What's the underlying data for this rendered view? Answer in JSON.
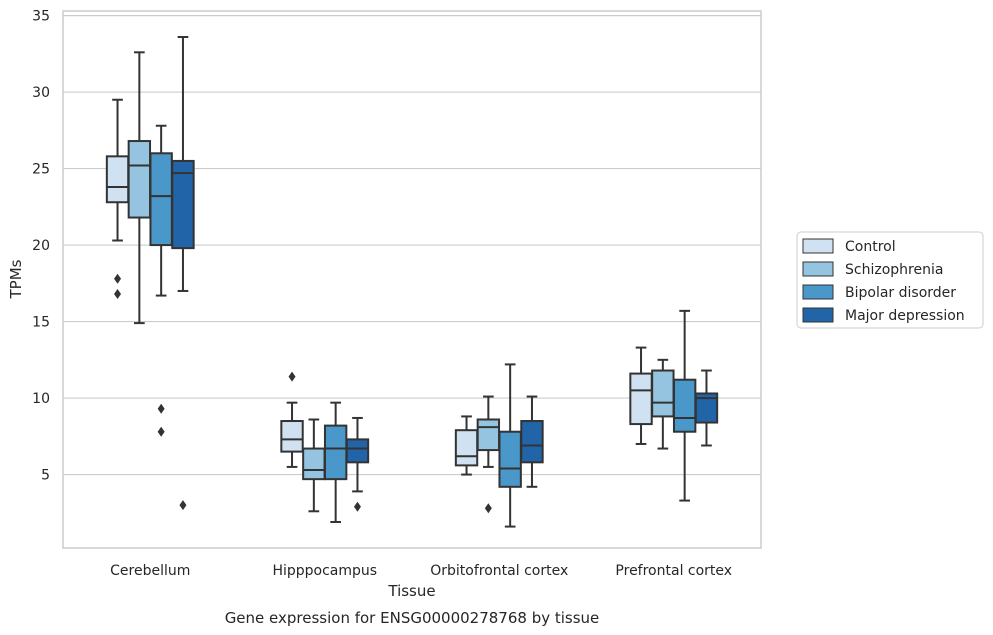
{
  "chart_data": {
    "type": "box",
    "xlabel": "Tissue",
    "ylabel": "TPMs",
    "caption": "Gene expression for ENSG00000278768 by tissue",
    "ylim": [
      0.2,
      35.3
    ],
    "yticks": [
      5,
      10,
      15,
      20,
      25,
      30,
      35
    ],
    "grid": true,
    "legend_position": "right",
    "categories": [
      "Cerebellum",
      "Hipppocampus",
      "Orbitofrontal cortex",
      "Prefrontal cortex"
    ],
    "series": [
      {
        "name": "Control",
        "color": "#d0e1f2",
        "boxes": [
          {
            "min": 20.3,
            "q1": 22.8,
            "median": 23.8,
            "q3": 25.8,
            "max": 29.5,
            "outliers": [
              16.8,
              17.8
            ]
          },
          {
            "min": 5.5,
            "q1": 6.5,
            "median": 7.3,
            "q3": 8.5,
            "max": 9.7,
            "outliers": [
              11.4
            ]
          },
          {
            "min": 5.0,
            "q1": 5.6,
            "median": 6.2,
            "q3": 7.9,
            "max": 8.8,
            "outliers": []
          },
          {
            "min": 7.0,
            "q1": 8.3,
            "median": 10.5,
            "q3": 11.6,
            "max": 13.3,
            "outliers": []
          }
        ]
      },
      {
        "name": "Schizophrenia",
        "color": "#94c4df",
        "boxes": [
          {
            "min": 14.9,
            "q1": 21.8,
            "median": 25.2,
            "q3": 26.8,
            "max": 32.6,
            "outliers": []
          },
          {
            "min": 2.6,
            "q1": 4.7,
            "median": 5.3,
            "q3": 6.7,
            "max": 8.6,
            "outliers": []
          },
          {
            "min": 5.5,
            "q1": 6.6,
            "median": 8.1,
            "q3": 8.6,
            "max": 10.1,
            "outliers": [
              2.8
            ]
          },
          {
            "min": 6.7,
            "q1": 8.8,
            "median": 9.7,
            "q3": 11.8,
            "max": 12.5,
            "outliers": []
          }
        ]
      },
      {
        "name": "Bipolar disorder",
        "color": "#4a98c9",
        "boxes": [
          {
            "min": 16.7,
            "q1": 20.0,
            "median": 23.2,
            "q3": 26.0,
            "max": 27.8,
            "outliers": [
              9.3,
              7.8
            ]
          },
          {
            "min": 1.9,
            "q1": 4.7,
            "median": 6.7,
            "q3": 8.2,
            "max": 9.7,
            "outliers": []
          },
          {
            "min": 1.6,
            "q1": 4.2,
            "median": 5.4,
            "q3": 7.8,
            "max": 12.2,
            "outliers": []
          },
          {
            "min": 3.3,
            "q1": 7.8,
            "median": 8.7,
            "q3": 11.2,
            "max": 15.7,
            "outliers": []
          }
        ]
      },
      {
        "name": "Major depression",
        "color": "#2264a8",
        "boxes": [
          {
            "min": 17.0,
            "q1": 19.8,
            "median": 24.7,
            "q3": 25.5,
            "max": 33.6,
            "outliers": [
              3.0
            ]
          },
          {
            "min": 3.9,
            "q1": 5.8,
            "median": 6.7,
            "q3": 7.3,
            "max": 8.7,
            "outliers": [
              2.9
            ]
          },
          {
            "min": 4.2,
            "q1": 5.8,
            "median": 6.9,
            "q3": 8.5,
            "max": 10.1,
            "outliers": []
          },
          {
            "min": 6.9,
            "q1": 8.4,
            "median": 10.0,
            "q3": 10.3,
            "max": 11.8,
            "outliers": []
          }
        ]
      }
    ]
  }
}
